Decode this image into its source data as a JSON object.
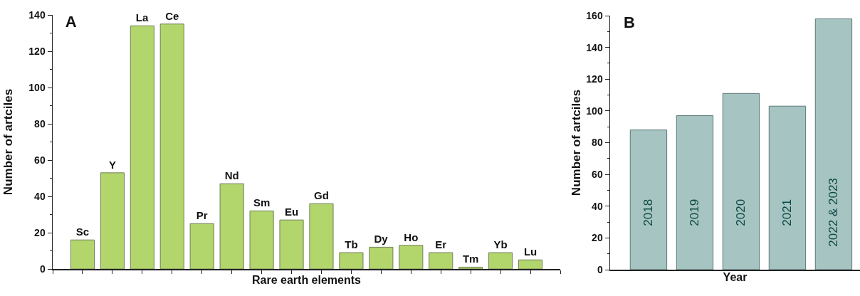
{
  "chart_data": [
    {
      "type": "bar",
      "title": "A",
      "xlabel": "Rare earth elements",
      "ylabel": "Number of artciles",
      "categories": [
        "Sc",
        "Y",
        "La",
        "Ce",
        "Pr",
        "Nd",
        "Sm",
        "Eu",
        "Gd",
        "Tb",
        "Dy",
        "Ho",
        "Er",
        "Tm",
        "Yb",
        "Lu"
      ],
      "values": [
        16,
        53,
        134,
        135,
        25,
        47,
        32,
        27,
        36,
        9,
        12,
        13,
        9,
        1,
        9,
        5
      ],
      "color": "#b3d66c",
      "ylim": [
        0,
        140
      ],
      "yticks": [
        0,
        {
          "value": 10,
          "label": null
        },
        20,
        {
          "value": 30,
          "label": null
        },
        40,
        {
          "value": 50,
          "label": null
        },
        60,
        {
          "value": 70,
          "label": null
        },
        80,
        {
          "value": 90,
          "label": null
        },
        100,
        {
          "value": 110,
          "label": null
        },
        120,
        {
          "value": 130,
          "label": null
        },
        140
      ],
      "tick_labels": "y",
      "grid": false
    },
    {
      "type": "bar",
      "title": "B",
      "xlabel": "Year",
      "ylabel": "Number of artciles",
      "categories": [
        "2018",
        "2019",
        "2020",
        "2021",
        "2022 & 2023"
      ],
      "values": [
        88,
        97,
        111,
        103,
        158
      ],
      "color": "#a6c4c2",
      "ylim": [
        0,
        160
      ],
      "yticks": [
        0,
        {
          "value": 10,
          "label": null
        },
        20,
        {
          "value": 30,
          "label": null
        },
        40,
        {
          "value": 50,
          "label": null
        },
        60,
        {
          "value": 70,
          "label": null
        },
        80,
        {
          "value": 90,
          "label": null
        },
        100,
        {
          "value": 110,
          "label": null
        },
        120,
        {
          "value": 130,
          "label": null
        },
        140,
        {
          "value": 150,
          "label": null
        },
        160
      ],
      "tick_labels": "y",
      "grid": false
    }
  ]
}
